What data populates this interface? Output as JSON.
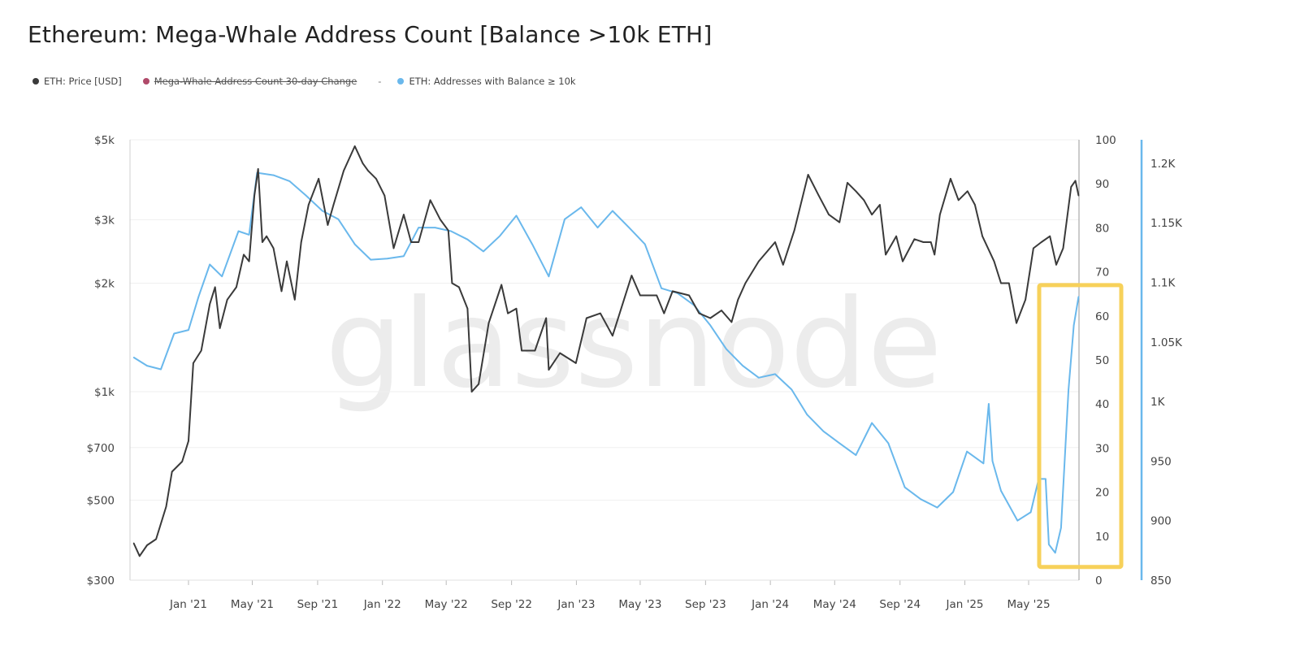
{
  "title": "Ethereum: Mega-Whale Address Count [Balance >10k ETH]",
  "legend": [
    {
      "label": "ETH: Price [USD]",
      "color": "#3a3a3a",
      "hidden": false
    },
    {
      "label": "Mega-Whale Address Count 30-day Change",
      "color": "#b04a6a",
      "hidden": true
    },
    {
      "label": "ETH: Addresses with Balance ≥ 10k",
      "color": "#6ab8ec",
      "hidden": false
    }
  ],
  "legend_separator": "-",
  "watermark": "glassnode",
  "colors": {
    "price": "#3a3a3a",
    "addresses": "#6ab8ec",
    "highlight": "#f7d15a"
  },
  "chart_data": {
    "type": "line",
    "title": "Ethereum: Mega-Whale Address Count [Balance >10k ETH]",
    "grid": true,
    "legend_position": "top-left",
    "x_ticks": [
      "Jan '21",
      "May '21",
      "Sep '21",
      "Jan '22",
      "May '22",
      "Sep '22",
      "Jan '23",
      "May '23",
      "Sep '23",
      "Jan '24",
      "May '24",
      "Sep '24",
      "Jan '25",
      "May '25"
    ],
    "x_tick_dates": [
      "2021-01-01",
      "2021-05-01",
      "2021-09-01",
      "2022-01-01",
      "2022-05-01",
      "2022-09-01",
      "2023-01-01",
      "2023-05-01",
      "2023-09-01",
      "2024-01-01",
      "2024-05-01",
      "2024-09-01",
      "2025-01-01",
      "2025-05-01"
    ],
    "x_range": [
      "2020-09-20",
      "2025-08-05"
    ],
    "y_left": {
      "scale": "log",
      "range": [
        300,
        5000
      ],
      "ticks": [
        300,
        500,
        700,
        1000,
        2000,
        3000,
        5000
      ],
      "tick_labels": [
        "$300",
        "$500",
        "$700",
        "$1k",
        "$2k",
        "$3k",
        "$5k"
      ]
    },
    "y_mid": {
      "scale": "linear",
      "range": [
        0,
        100
      ],
      "ticks": [
        "0",
        "10",
        "20",
        "30",
        "40",
        "50",
        "60",
        "70",
        "80",
        "90",
        "100"
      ]
    },
    "y_right": {
      "scale": "linear",
      "range": [
        850,
        1220
      ],
      "ticks": [
        850,
        900,
        950,
        1000,
        1050,
        1100,
        1150,
        1200
      ],
      "tick_labels": [
        "850",
        "900",
        "950",
        "1K",
        "1.05K",
        "1.1K",
        "1.15K",
        "1.2K"
      ]
    },
    "annotation": {
      "type": "highlight-box",
      "x_range": [
        "2025-05-10",
        "2025-08-10"
      ],
      "y_mid_range": [
        3,
        67
      ]
    },
    "series": [
      {
        "name": "ETH: Price [USD]",
        "axis": "left",
        "points": [
          [
            "2020-09-20",
            380
          ],
          [
            "2020-10-01",
            350
          ],
          [
            "2020-10-15",
            375
          ],
          [
            "2020-11-01",
            390
          ],
          [
            "2020-11-20",
            480
          ],
          [
            "2020-12-01",
            600
          ],
          [
            "2020-12-20",
            640
          ],
          [
            "2021-01-01",
            730
          ],
          [
            "2021-01-10",
            1200
          ],
          [
            "2021-01-25",
            1300
          ],
          [
            "2021-02-10",
            1750
          ],
          [
            "2021-02-20",
            1950
          ],
          [
            "2021-03-01",
            1500
          ],
          [
            "2021-03-15",
            1800
          ],
          [
            "2021-04-01",
            1950
          ],
          [
            "2021-04-15",
            2400
          ],
          [
            "2021-04-25",
            2300
          ],
          [
            "2021-05-05",
            3500
          ],
          [
            "2021-05-12",
            4150
          ],
          [
            "2021-05-20",
            2600
          ],
          [
            "2021-05-28",
            2700
          ],
          [
            "2021-06-10",
            2500
          ],
          [
            "2021-06-25",
            1900
          ],
          [
            "2021-07-05",
            2300
          ],
          [
            "2021-07-20",
            1800
          ],
          [
            "2021-08-01",
            2600
          ],
          [
            "2021-08-15",
            3300
          ],
          [
            "2021-09-03",
            3900
          ],
          [
            "2021-09-20",
            2900
          ],
          [
            "2021-10-01",
            3300
          ],
          [
            "2021-10-20",
            4100
          ],
          [
            "2021-11-10",
            4800
          ],
          [
            "2021-11-25",
            4300
          ],
          [
            "2021-12-05",
            4100
          ],
          [
            "2021-12-20",
            3900
          ],
          [
            "2022-01-05",
            3500
          ],
          [
            "2022-01-22",
            2500
          ],
          [
            "2022-02-10",
            3100
          ],
          [
            "2022-02-24",
            2600
          ],
          [
            "2022-03-10",
            2600
          ],
          [
            "2022-04-01",
            3400
          ],
          [
            "2022-04-20",
            3000
          ],
          [
            "2022-05-05",
            2800
          ],
          [
            "2022-05-12",
            2000
          ],
          [
            "2022-05-25",
            1950
          ],
          [
            "2022-06-10",
            1700
          ],
          [
            "2022-06-18",
            1000
          ],
          [
            "2022-07-01",
            1050
          ],
          [
            "2022-07-20",
            1550
          ],
          [
            "2022-08-13",
            1980
          ],
          [
            "2022-08-25",
            1650
          ],
          [
            "2022-09-10",
            1700
          ],
          [
            "2022-09-20",
            1300
          ],
          [
            "2022-10-15",
            1300
          ],
          [
            "2022-11-05",
            1600
          ],
          [
            "2022-11-10",
            1150
          ],
          [
            "2022-12-01",
            1280
          ],
          [
            "2022-12-31",
            1200
          ],
          [
            "2023-01-20",
            1600
          ],
          [
            "2023-02-15",
            1650
          ],
          [
            "2023-03-10",
            1430
          ],
          [
            "2023-04-15",
            2100
          ],
          [
            "2023-05-01",
            1850
          ],
          [
            "2023-06-01",
            1850
          ],
          [
            "2023-06-15",
            1650
          ],
          [
            "2023-07-01",
            1900
          ],
          [
            "2023-08-01",
            1850
          ],
          [
            "2023-08-20",
            1650
          ],
          [
            "2023-09-10",
            1600
          ],
          [
            "2023-10-01",
            1680
          ],
          [
            "2023-10-20",
            1560
          ],
          [
            "2023-11-01",
            1800
          ],
          [
            "2023-11-15",
            2000
          ],
          [
            "2023-12-10",
            2300
          ],
          [
            "2024-01-10",
            2600
          ],
          [
            "2024-01-25",
            2250
          ],
          [
            "2024-02-15",
            2800
          ],
          [
            "2024-03-12",
            4000
          ],
          [
            "2024-04-01",
            3500
          ],
          [
            "2024-04-20",
            3100
          ],
          [
            "2024-05-10",
            2950
          ],
          [
            "2024-05-25",
            3800
          ],
          [
            "2024-06-10",
            3600
          ],
          [
            "2024-06-25",
            3400
          ],
          [
            "2024-07-10",
            3100
          ],
          [
            "2024-07-25",
            3300
          ],
          [
            "2024-08-05",
            2400
          ],
          [
            "2024-08-25",
            2700
          ],
          [
            "2024-09-06",
            2300
          ],
          [
            "2024-09-28",
            2650
          ],
          [
            "2024-10-15",
            2600
          ],
          [
            "2024-10-29",
            2600
          ],
          [
            "2024-11-05",
            2400
          ],
          [
            "2024-11-15",
            3100
          ],
          [
            "2024-12-05",
            3900
          ],
          [
            "2024-12-20",
            3400
          ],
          [
            "2025-01-06",
            3600
          ],
          [
            "2025-01-20",
            3300
          ],
          [
            "2025-02-03",
            2700
          ],
          [
            "2025-02-25",
            2300
          ],
          [
            "2025-03-10",
            2000
          ],
          [
            "2025-03-25",
            2000
          ],
          [
            "2025-04-08",
            1550
          ],
          [
            "2025-04-25",
            1800
          ],
          [
            "2025-05-10",
            2500
          ],
          [
            "2025-05-25",
            2600
          ],
          [
            "2025-06-10",
            2700
          ],
          [
            "2025-06-22",
            2250
          ],
          [
            "2025-07-05",
            2500
          ],
          [
            "2025-07-20",
            3700
          ],
          [
            "2025-07-28",
            3850
          ],
          [
            "2025-08-03",
            3500
          ]
        ]
      },
      {
        "name": "ETH: Addresses with Balance ≥ 10k",
        "axis": "right",
        "points": [
          [
            "2020-09-20",
            1037
          ],
          [
            "2020-10-15",
            1030
          ],
          [
            "2020-11-10",
            1027
          ],
          [
            "2020-12-05",
            1057
          ],
          [
            "2021-01-01",
            1060
          ],
          [
            "2021-01-20",
            1088
          ],
          [
            "2021-02-10",
            1115
          ],
          [
            "2021-03-05",
            1105
          ],
          [
            "2021-04-05",
            1143
          ],
          [
            "2021-04-25",
            1140
          ],
          [
            "2021-05-10",
            1192
          ],
          [
            "2021-06-10",
            1190
          ],
          [
            "2021-07-10",
            1185
          ],
          [
            "2021-08-10",
            1173
          ],
          [
            "2021-09-10",
            1160
          ],
          [
            "2021-10-10",
            1153
          ],
          [
            "2021-11-10",
            1132
          ],
          [
            "2021-12-10",
            1119
          ],
          [
            "2022-01-10",
            1120
          ],
          [
            "2022-02-10",
            1122
          ],
          [
            "2022-03-10",
            1146
          ],
          [
            "2022-04-10",
            1146
          ],
          [
            "2022-05-10",
            1143
          ],
          [
            "2022-06-10",
            1136
          ],
          [
            "2022-07-10",
            1126
          ],
          [
            "2022-08-10",
            1139
          ],
          [
            "2022-09-10",
            1156
          ],
          [
            "2022-10-10",
            1132
          ],
          [
            "2022-11-10",
            1105
          ],
          [
            "2022-12-10",
            1153
          ],
          [
            "2023-01-10",
            1163
          ],
          [
            "2023-02-10",
            1146
          ],
          [
            "2023-03-10",
            1160
          ],
          [
            "2023-04-10",
            1146
          ],
          [
            "2023-05-10",
            1132
          ],
          [
            "2023-06-10",
            1095
          ],
          [
            "2023-07-10",
            1091
          ],
          [
            "2023-08-10",
            1081
          ],
          [
            "2023-09-10",
            1064
          ],
          [
            "2023-10-10",
            1044
          ],
          [
            "2023-11-10",
            1030
          ],
          [
            "2023-12-10",
            1020
          ],
          [
            "2024-01-10",
            1023
          ],
          [
            "2024-02-10",
            1010
          ],
          [
            "2024-03-10",
            989
          ],
          [
            "2024-04-10",
            975
          ],
          [
            "2024-05-10",
            965
          ],
          [
            "2024-06-10",
            955
          ],
          [
            "2024-07-10",
            982
          ],
          [
            "2024-08-10",
            965
          ],
          [
            "2024-09-10",
            928
          ],
          [
            "2024-10-10",
            918
          ],
          [
            "2024-11-10",
            911
          ],
          [
            "2024-12-10",
            924
          ],
          [
            "2025-01-05",
            958
          ],
          [
            "2025-02-05",
            948
          ],
          [
            "2025-02-15",
            998
          ],
          [
            "2025-02-22",
            950
          ],
          [
            "2025-03-10",
            925
          ],
          [
            "2025-04-10",
            900
          ],
          [
            "2025-05-05",
            907
          ],
          [
            "2025-05-20",
            935
          ],
          [
            "2025-06-02",
            935
          ],
          [
            "2025-06-08",
            880
          ],
          [
            "2025-06-20",
            873
          ],
          [
            "2025-07-01",
            894
          ],
          [
            "2025-07-15",
            1010
          ],
          [
            "2025-07-25",
            1064
          ],
          [
            "2025-08-03",
            1088
          ]
        ]
      }
    ]
  }
}
